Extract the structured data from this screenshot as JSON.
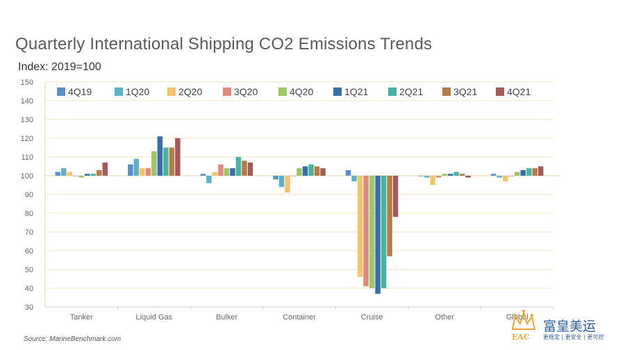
{
  "header": {
    "title": "Quarterly International Shipping CO2 Emissions Trends",
    "subtitle": "Index: 2019=100"
  },
  "footer": {
    "source": "Source: MarineBenchmark.com"
  },
  "watermark": {
    "name_cn": "富皇美运",
    "tagline": "更稳定 | 更安全 | 更可控",
    "initials": "EAC",
    "color": "#e8a33a"
  },
  "chart_data": {
    "type": "bar",
    "title": "Quarterly International Shipping CO2 Emissions Trends",
    "subtitle": "Index: 2019=100",
    "xlabel": "",
    "ylabel": "",
    "ylim": [
      30,
      150
    ],
    "yticks": [
      30,
      40,
      50,
      60,
      70,
      80,
      90,
      100,
      110,
      120,
      130,
      140,
      150
    ],
    "baseline": 100,
    "grid": true,
    "legend_position": "top",
    "categories": [
      "Tanker",
      "Liquid Gas",
      "Bulker",
      "Container",
      "Cruise",
      "Other",
      "Global"
    ],
    "series": [
      {
        "name": "4Q19",
        "color": "#5b8fc9",
        "values": [
          102,
          106,
          101,
          98,
          103,
          100,
          101
        ]
      },
      {
        "name": "1Q20",
        "color": "#5fb0c7",
        "values": [
          104,
          109,
          96,
          94,
          97,
          99,
          99
        ]
      },
      {
        "name": "2Q20",
        "color": "#f2c46d",
        "values": [
          102,
          104,
          102,
          91,
          46,
          95,
          97
        ]
      },
      {
        "name": "3Q20",
        "color": "#df8a7c",
        "values": [
          100,
          104,
          106,
          100,
          41,
          99,
          100
        ]
      },
      {
        "name": "4Q20",
        "color": "#9fc46a",
        "values": [
          99,
          113,
          104,
          104,
          40,
          101,
          102
        ]
      },
      {
        "name": "1Q21",
        "color": "#3a6fa6",
        "values": [
          101,
          121,
          104,
          105,
          37,
          101,
          103
        ]
      },
      {
        "name": "2Q21",
        "color": "#48b3a5",
        "values": [
          101,
          115,
          110,
          106,
          40,
          102,
          104
        ]
      },
      {
        "name": "3Q21",
        "color": "#b07e46",
        "values": [
          103,
          115,
          108,
          105,
          57,
          101,
          104
        ]
      },
      {
        "name": "4Q21",
        "color": "#a55a5a",
        "values": [
          107,
          120,
          107,
          104,
          78,
          99,
          105
        ]
      }
    ]
  }
}
